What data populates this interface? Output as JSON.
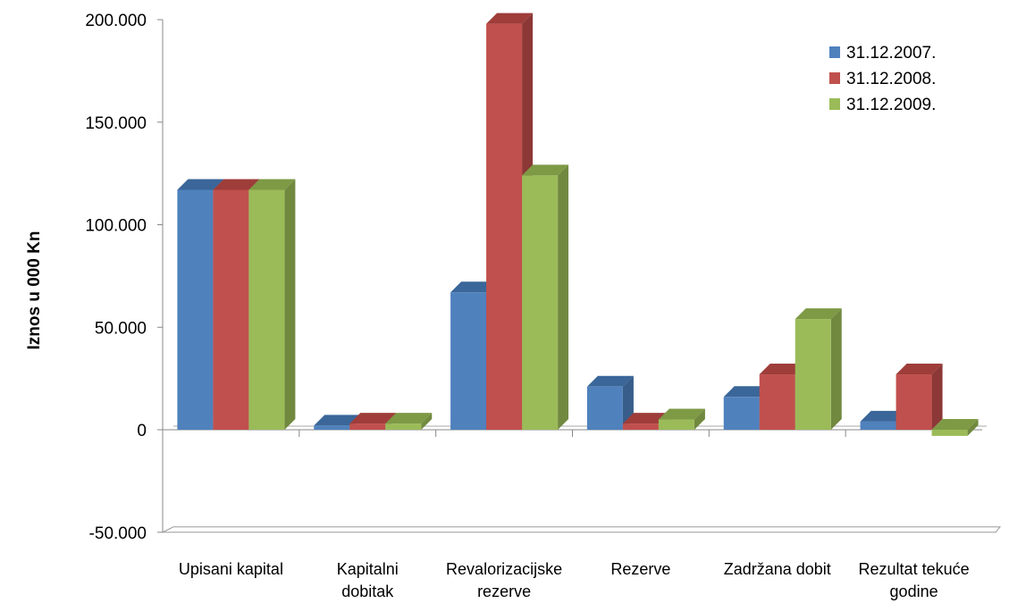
{
  "chart_data": {
    "type": "bar",
    "ylabel": "Iznos u 000 Kn",
    "ylim": [
      -50000,
      200000
    ],
    "yticks": [
      -50000,
      0,
      50000,
      100000,
      150000,
      200000
    ],
    "ytick_labels": [
      "-50.000",
      "0",
      "50.000",
      "100.000",
      "150.000",
      "200.000"
    ],
    "categories": [
      [
        "Upisani kapital"
      ],
      [
        "Kapitalni",
        "dobitak"
      ],
      [
        "Revalorizacijske",
        "rezerve"
      ],
      [
        "Rezerve"
      ],
      [
        "Zadržana dobit"
      ],
      [
        "Rezultat tekuće",
        "godine"
      ]
    ],
    "series": [
      {
        "name": "31.12.2007.",
        "color": "#4F81BD",
        "side": "#385D8A",
        "top": "#3A6699",
        "values": [
          117000,
          2000,
          67000,
          21000,
          16000,
          4000
        ]
      },
      {
        "name": "31.12.2008.",
        "color": "#C0504D",
        "side": "#8C3836",
        "top": "#9E3D3A",
        "values": [
          117000,
          3000,
          198000,
          3000,
          27000,
          27000
        ]
      },
      {
        "name": "31.12.2009.",
        "color": "#9BBB59",
        "side": "#71893F",
        "top": "#7E9A45",
        "values": [
          117000,
          3000,
          124000,
          5000,
          54000,
          -3000
        ]
      }
    ],
    "grid": false,
    "legend": "top-right"
  }
}
